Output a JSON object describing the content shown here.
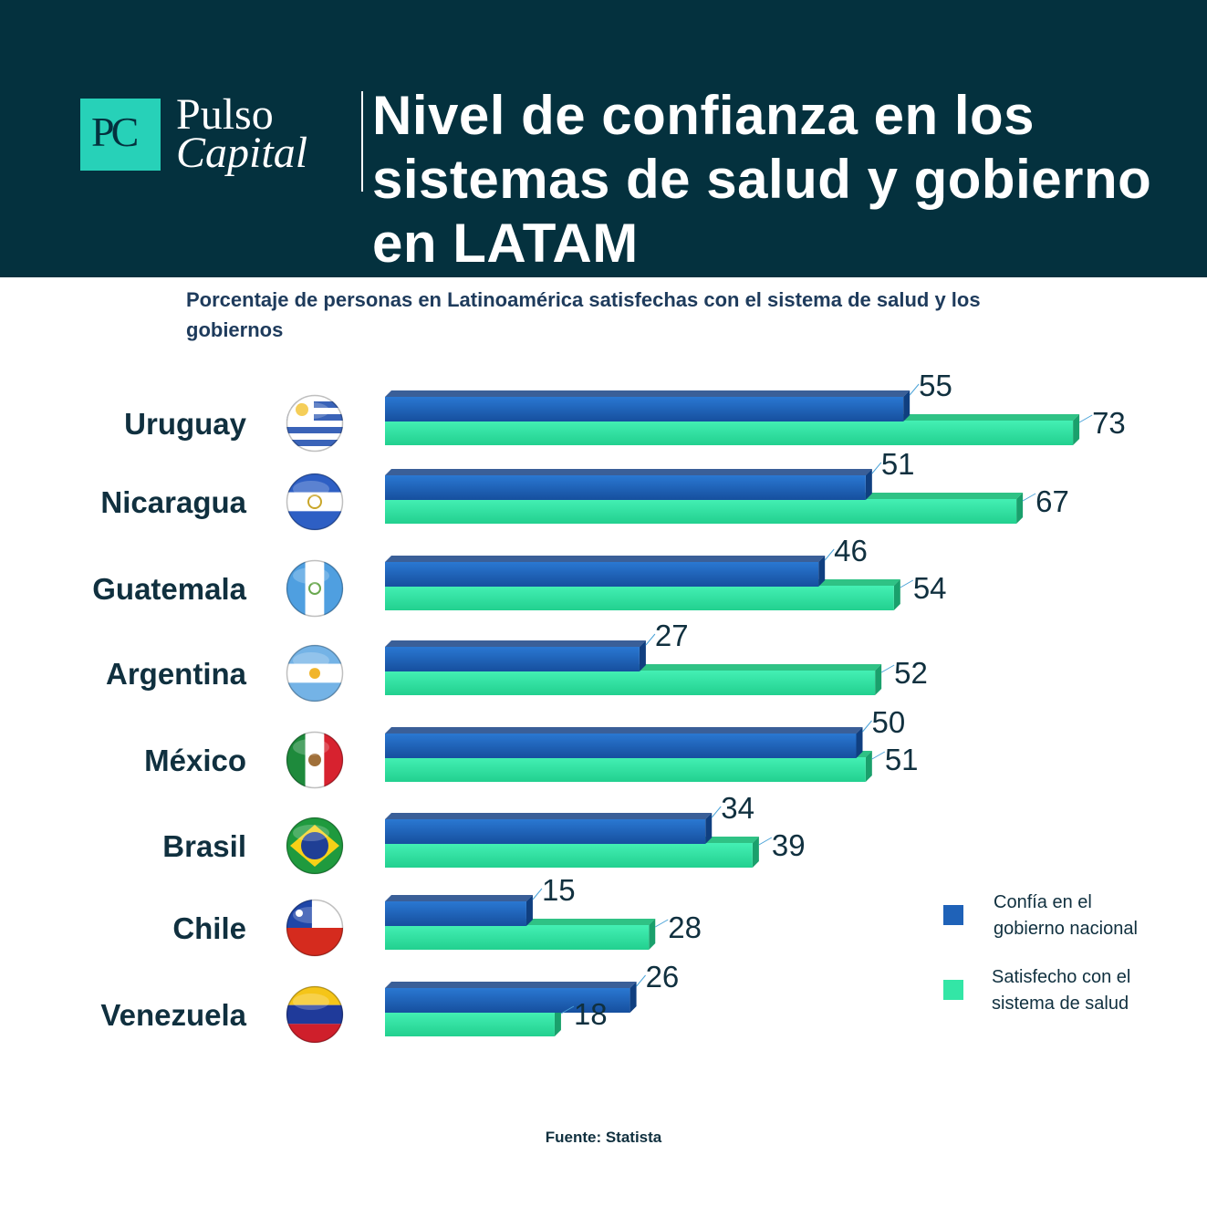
{
  "header": {
    "logo_mark": "PC",
    "brand_line1": "Pulso",
    "brand_line2": "Capital",
    "title": "Nivel de confianza en los sistemas de salud y gobierno en LATAM"
  },
  "subtitle": "Porcentaje de personas en Latinoamérica satisfechas con el sistema de salud y los gobiernos",
  "legend": {
    "government_label_1": "Confía en el",
    "government_label_2": "gobierno nacional",
    "health_label_1": "Satisfecho con el",
    "health_label_2": "sistema de salud"
  },
  "source": "Fuente: Statista",
  "colors": {
    "header_bg": "#04313e",
    "logo_accent": "#27d1b8",
    "government": "#1f62b8",
    "health": "#33e6a6"
  },
  "chart_data": {
    "type": "bar",
    "orientation": "horizontal",
    "categories": [
      "Uruguay",
      "Nicaragua",
      "Guatemala",
      "Argentina",
      "México",
      "Brasil",
      "Chile",
      "Venezuela"
    ],
    "series": [
      {
        "name": "Confía en el gobierno nacional",
        "values": [
          55,
          51,
          46,
          27,
          50,
          34,
          15,
          26
        ]
      },
      {
        "name": "Satisfecho con el sistema de salud",
        "values": [
          73,
          67,
          54,
          52,
          51,
          39,
          28,
          18
        ]
      }
    ],
    "flags": [
      "uruguay-flag",
      "nicaragua-flag",
      "guatemala-flag",
      "argentina-flag",
      "mexico-flag",
      "brazil-flag",
      "chile-flag",
      "venezuela-flag"
    ],
    "xlim": [
      0,
      100
    ],
    "legend_position": "right"
  }
}
